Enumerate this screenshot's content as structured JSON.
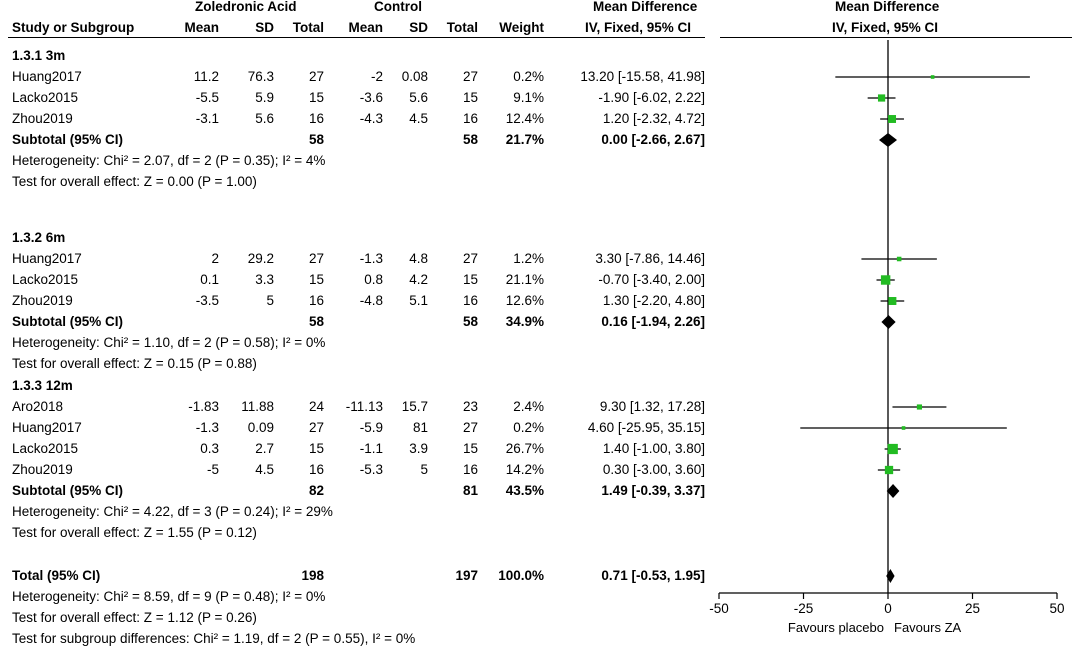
{
  "header": {
    "group1": "Zoledronic Acid",
    "group2": "Control",
    "md_title": "Mean Difference",
    "md_sub": "IV, Fixed, 95% CI",
    "plot_title": "Mean Difference",
    "plot_sub": "IV, Fixed, 95% CI",
    "cols": [
      "Study or Subgroup",
      "Mean",
      "SD",
      "Total",
      "Mean",
      "SD",
      "Total",
      "Weight"
    ]
  },
  "subgroups": [
    {
      "label": "1.3.1 3m",
      "studies": [
        {
          "study": "Huang2017",
          "m1": "11.2",
          "sd1": "76.3",
          "n1": "27",
          "m2": "-2",
          "sd2": "0.08",
          "n2": "27",
          "weight": "0.2%",
          "ci": "13.20 [-15.58, 41.98]"
        },
        {
          "study": "Lacko2015",
          "m1": "-5.5",
          "sd1": "5.9",
          "n1": "15",
          "m2": "-3.6",
          "sd2": "5.6",
          "n2": "15",
          "weight": "9.1%",
          "ci": "-1.90 [-6.02, 2.22]"
        },
        {
          "study": "Zhou2019",
          "m1": "-3.1",
          "sd1": "5.6",
          "n1": "16",
          "m2": "-4.3",
          "sd2": "4.5",
          "n2": "16",
          "weight": "12.4%",
          "ci": "1.20 [-2.32, 4.72]"
        }
      ],
      "subtotal": {
        "label": "Subtotal (95% CI)",
        "n1": "58",
        "n2": "58",
        "weight": "21.7%",
        "ci": "0.00 [-2.66, 2.67]"
      },
      "heterogeneity": "Heterogeneity: Chi² = 2.07, df = 2 (P = 0.35); I² = 4%",
      "overall": "Test for overall effect: Z = 0.00 (P = 1.00)"
    },
    {
      "label": "1.3.2 6m",
      "studies": [
        {
          "study": "Huang2017",
          "m1": "2",
          "sd1": "29.2",
          "n1": "27",
          "m2": "-1.3",
          "sd2": "4.8",
          "n2": "27",
          "weight": "1.2%",
          "ci": "3.30 [-7.86, 14.46]"
        },
        {
          "study": "Lacko2015",
          "m1": "0.1",
          "sd1": "3.3",
          "n1": "15",
          "m2": "0.8",
          "sd2": "4.2",
          "n2": "15",
          "weight": "21.1%",
          "ci": "-0.70 [-3.40, 2.00]"
        },
        {
          "study": "Zhou2019",
          "m1": "-3.5",
          "sd1": "5",
          "n1": "16",
          "m2": "-4.8",
          "sd2": "5.1",
          "n2": "16",
          "weight": "12.6%",
          "ci": "1.30 [-2.20, 4.80]"
        }
      ],
      "subtotal": {
        "label": "Subtotal (95% CI)",
        "n1": "58",
        "n2": "58",
        "weight": "34.9%",
        "ci": "0.16 [-1.94, 2.26]"
      },
      "heterogeneity": "Heterogeneity: Chi² = 1.10, df = 2 (P = 0.58); I² = 0%",
      "overall": "Test for overall effect: Z = 0.15 (P = 0.88)"
    },
    {
      "label": "1.3.3 12m",
      "studies": [
        {
          "study": "Aro2018",
          "m1": "-1.83",
          "sd1": "11.88",
          "n1": "24",
          "m2": "-11.13",
          "sd2": "15.7",
          "n2": "23",
          "weight": "2.4%",
          "ci": "9.30 [1.32, 17.28]"
        },
        {
          "study": "Huang2017",
          "m1": "-1.3",
          "sd1": "0.09",
          "n1": "27",
          "m2": "-5.9",
          "sd2": "81",
          "n2": "27",
          "weight": "0.2%",
          "ci": "4.60 [-25.95, 35.15]"
        },
        {
          "study": "Lacko2015",
          "m1": "0.3",
          "sd1": "2.7",
          "n1": "15",
          "m2": "-1.1",
          "sd2": "3.9",
          "n2": "15",
          "weight": "26.7%",
          "ci": "1.40 [-1.00, 3.80]"
        },
        {
          "study": "Zhou2019",
          "m1": "-5",
          "sd1": "4.5",
          "n1": "16",
          "m2": "-5.3",
          "sd2": "5",
          "n2": "16",
          "weight": "14.2%",
          "ci": "0.30 [-3.00, 3.60]"
        }
      ],
      "subtotal": {
        "label": "Subtotal (95% CI)",
        "n1": "82",
        "n2": "81",
        "weight": "43.5%",
        "ci": "1.49 [-0.39, 3.37]"
      },
      "heterogeneity": "Heterogeneity: Chi² = 4.22, df = 3 (P = 0.24); I² = 29%",
      "overall": "Test for overall effect: Z = 1.55 (P = 0.12)"
    }
  ],
  "total": {
    "label": "Total (95% CI)",
    "n1": "198",
    "n2": "197",
    "weight": "100.0%",
    "ci": "0.71 [-0.53, 1.95]"
  },
  "total_heterogeneity": "Heterogeneity: Chi² = 8.59, df = 9 (P = 0.48); I² = 0%",
  "total_overall": "Test for overall effect: Z = 1.12 (P = 0.26)",
  "subgroup_diff": "Test for subgroup differences: Chi² = 1.19, df = 2 (P = 0.55), I² = 0%",
  "chart_data": {
    "type": "forest",
    "xlim": [
      -50,
      50
    ],
    "ticks": [
      "-50",
      "-25",
      "0",
      "25",
      "50"
    ],
    "tick_values": [
      -50,
      -25,
      0,
      25,
      50
    ],
    "favours_left": "Favours placebo",
    "favours_right": "Favours ZA",
    "colors": {
      "square": "#22bb22",
      "diamond": "#000000",
      "line": "#000000"
    },
    "studies": [
      {
        "group": 0,
        "study": "Huang2017",
        "md": 13.2,
        "lo": -15.58,
        "hi": 41.98,
        "weight": 0.2
      },
      {
        "group": 0,
        "study": "Lacko2015",
        "md": -1.9,
        "lo": -6.02,
        "hi": 2.22,
        "weight": 9.1
      },
      {
        "group": 0,
        "study": "Zhou2019",
        "md": 1.2,
        "lo": -2.32,
        "hi": 4.72,
        "weight": 12.4
      },
      {
        "group": 1,
        "study": "Huang2017",
        "md": 3.3,
        "lo": -7.86,
        "hi": 14.46,
        "weight": 1.2
      },
      {
        "group": 1,
        "study": "Lacko2015",
        "md": -0.7,
        "lo": -3.4,
        "hi": 2.0,
        "weight": 21.1
      },
      {
        "group": 1,
        "study": "Zhou2019",
        "md": 1.3,
        "lo": -2.2,
        "hi": 4.8,
        "weight": 12.6
      },
      {
        "group": 2,
        "study": "Aro2018",
        "md": 9.3,
        "lo": 1.32,
        "hi": 17.28,
        "weight": 2.4
      },
      {
        "group": 2,
        "study": "Huang2017",
        "md": 4.6,
        "lo": -25.95,
        "hi": 35.15,
        "weight": 0.2
      },
      {
        "group": 2,
        "study": "Lacko2015",
        "md": 1.4,
        "lo": -1.0,
        "hi": 3.8,
        "weight": 26.7
      },
      {
        "group": 2,
        "study": "Zhou2019",
        "md": 0.3,
        "lo": -3.0,
        "hi": 3.6,
        "weight": 14.2
      }
    ],
    "subtotals": [
      {
        "group": 0,
        "md": 0.0,
        "lo": -2.66,
        "hi": 2.67
      },
      {
        "group": 1,
        "md": 0.16,
        "lo": -1.94,
        "hi": 2.26
      },
      {
        "group": 2,
        "md": 1.49,
        "lo": -0.39,
        "hi": 3.37
      }
    ],
    "total": {
      "md": 0.71,
      "lo": -0.53,
      "hi": 1.95
    }
  }
}
